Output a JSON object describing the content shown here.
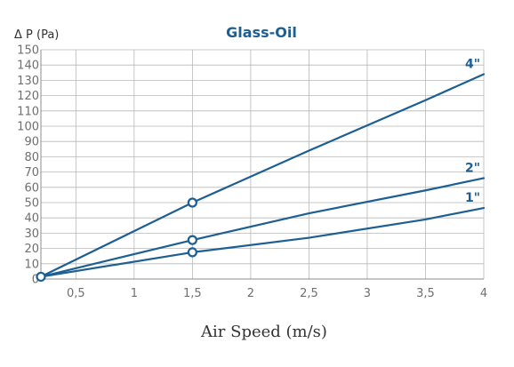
{
  "chart_data": {
    "type": "line",
    "title": "Glass-Oil",
    "ylabel": "Δ P (Pa)",
    "xlabel": "Air Speed (m/s)",
    "xlim": [
      0.2,
      4
    ],
    "ylim": [
      0,
      150
    ],
    "xticks": [
      0.5,
      1,
      1.5,
      2,
      2.5,
      3,
      3.5,
      4
    ],
    "xtick_labels": [
      "0,5",
      "1",
      "1,5",
      "2",
      "2,5",
      "3",
      "3,5",
      "4"
    ],
    "yticks": [
      0,
      10,
      20,
      30,
      40,
      50,
      60,
      70,
      80,
      90,
      100,
      110,
      120,
      130,
      140,
      150
    ],
    "ytick_labels": [
      "0",
      "10",
      "20",
      "30",
      "40",
      "50",
      "60",
      "70",
      "80",
      "90",
      "100",
      "110",
      "120",
      "130",
      "140",
      "150"
    ],
    "grid": true,
    "color": "#1d5f93",
    "series": [
      {
        "name": "4\"",
        "x": [
          0.2,
          1.5,
          2.5,
          3.5,
          4
        ],
        "y": [
          1.5,
          50,
          84,
          117,
          134
        ],
        "markers": [
          [
            0.2,
            1.5
          ],
          [
            1.5,
            50
          ]
        ]
      },
      {
        "name": "2\"",
        "x": [
          0.2,
          1.5,
          2.5,
          3.5,
          4
        ],
        "y": [
          1.5,
          25.5,
          43,
          58,
          66
        ],
        "markers": [
          [
            1.5,
            25.5
          ]
        ]
      },
      {
        "name": "1\"",
        "x": [
          0.2,
          1.5,
          2.5,
          3.5,
          4
        ],
        "y": [
          1.5,
          17.5,
          27,
          39,
          46.5
        ],
        "markers": [
          [
            1.5,
            17.5
          ]
        ]
      }
    ]
  }
}
